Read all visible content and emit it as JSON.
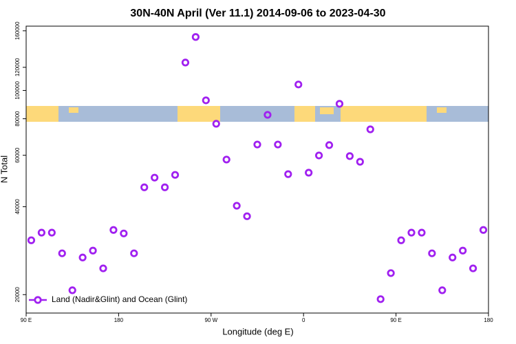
{
  "chart_data": {
    "type": "scatter",
    "title": "30N-40N April (Ver 11.1)   2014-09-06 to 2023-04-30",
    "x_label": "Longitude (deg E)",
    "y_label": "N Total",
    "log_y": true,
    "legend_position": "bottomleft",
    "xlim": [
      90,
      540
    ],
    "ylim": [
      17300,
      166000
    ],
    "xticks": [
      {
        "value": 90,
        "label": "90 E"
      },
      {
        "value": 180,
        "label": "180"
      },
      {
        "value": 270,
        "label": "90 W"
      },
      {
        "value": 360,
        "label": "0"
      },
      {
        "value": 450,
        "label": "90 E"
      },
      {
        "value": 540,
        "label": "180"
      }
    ],
    "yticks": [
      20000,
      40000,
      60000,
      80000,
      100000,
      120000,
      160000
    ],
    "series": [
      {
        "name": "Land (Nadir&Glint) and Ocean (Glint)",
        "color": "#a020f0",
        "x": [
          95,
          105,
          115,
          125,
          135,
          145,
          155,
          165,
          175,
          185,
          195,
          205,
          215,
          225,
          235,
          245,
          255,
          265,
          275,
          285,
          295,
          305,
          315,
          325,
          335,
          345,
          355,
          365,
          375,
          385,
          395,
          405,
          415,
          425,
          435,
          445,
          455,
          465,
          475,
          485,
          495,
          505,
          515,
          525,
          535
        ],
        "values": [
          30700,
          32600,
          32600,
          27700,
          20700,
          26800,
          28300,
          24600,
          33300,
          32400,
          27700,
          46600,
          50300,
          46600,
          51400,
          124600,
          152400,
          92500,
          76900,
          58000,
          40300,
          37100,
          65300,
          82500,
          65300,
          51700,
          104800,
          52300,
          59900,
          65000,
          90000,
          59600,
          57000,
          73600,
          19300,
          23700,
          30700,
          32600,
          32600,
          27700,
          20700,
          26800,
          28300,
          24600,
          33300
        ]
      }
    ]
  }
}
